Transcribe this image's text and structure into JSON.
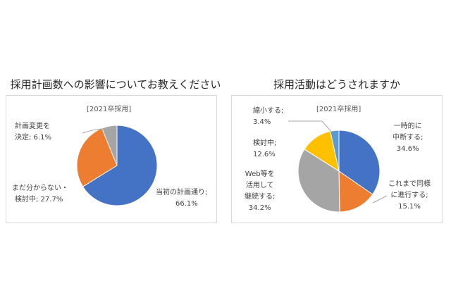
{
  "chart_data": [
    {
      "type": "pie",
      "title": "採用計画数への影響についてお教えください",
      "subtitle": "[2021卒採用]",
      "slices": [
        {
          "label_lines": [
            "当初の計画通り;",
            "66.1%"
          ],
          "value": 66.1,
          "color": "#4472c4"
        },
        {
          "label_lines": [
            "まだ分からない・",
            "検討中; 27.7%"
          ],
          "value": 27.7,
          "color": "#ed7d31"
        },
        {
          "label_lines": [
            "計画変更を",
            "決定; 6.1%"
          ],
          "value": 6.1,
          "color": "#a5a5a5"
        }
      ]
    },
    {
      "type": "pie",
      "title": "採用活動はどうされますか",
      "subtitle": "[2021卒採用]",
      "slices": [
        {
          "label_lines": [
            "一時的に",
            "中断する;",
            "34.6%"
          ],
          "value": 34.6,
          "color": "#4472c4"
        },
        {
          "label_lines": [
            "これまで同様",
            "に進行する;",
            "15.1%"
          ],
          "value": 15.1,
          "color": "#ed7d31"
        },
        {
          "label_lines": [
            "Web等を",
            "活用して",
            "継続する;",
            "34.2%"
          ],
          "value": 34.2,
          "color": "#a5a5a5"
        },
        {
          "label_lines": [
            "検討中;",
            "12.6%"
          ],
          "value": 12.6,
          "color": "#ffc000"
        },
        {
          "label_lines": [
            "縮小する;",
            "3.4%"
          ],
          "value": 3.4,
          "color": "#5b9bd5"
        }
      ]
    }
  ]
}
